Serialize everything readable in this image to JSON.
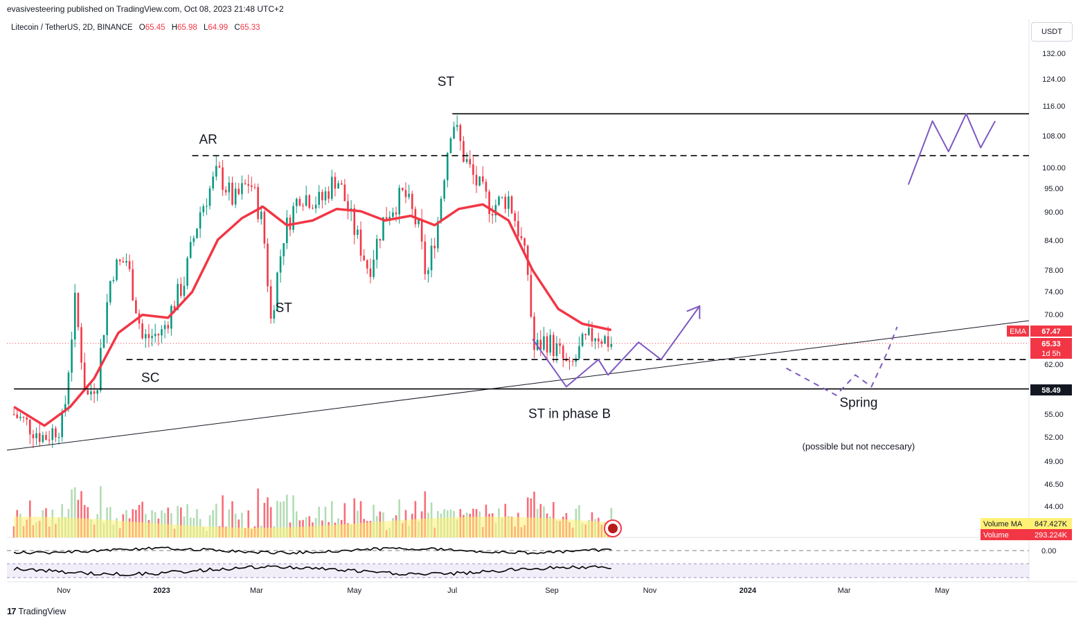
{
  "header": {
    "published_by": "evasivesteering published on TradingView.com, Oct 08, 2023 21:48 UTC+2",
    "symbol": "Litecoin / TetherUS, 2D, BINANCE",
    "ohlc": [
      {
        "label": "O",
        "value": "65.45"
      },
      {
        "label": "H",
        "value": "65.98"
      },
      {
        "label": "L",
        "value": "64.99"
      },
      {
        "label": "C",
        "value": "65.33"
      }
    ],
    "currency": "USDT"
  },
  "footer": {
    "brand": "TradingView"
  },
  "colors": {
    "up": "#089981",
    "down": "#f23645",
    "ema": "#f23645",
    "volume_ma": "#fff176",
    "vol_up": "#a5d6a7",
    "vol_down": "#f7525f",
    "drawing": "#7e57c2",
    "level": "#000000"
  },
  "chart_data": {
    "type": "candlestick",
    "title": "Litecoin / TetherUS, 2D, BINANCE",
    "x_ticks": [
      "Nov",
      "2023",
      "Mar",
      "May",
      "Jul",
      "Sep",
      "Nov",
      "2024",
      "Mar",
      "May"
    ],
    "y_ticks": [
      "132.00",
      "124.00",
      "116.00",
      "108.00",
      "100.00",
      "95.00",
      "90.00",
      "84.00",
      "78.00",
      "74.00",
      "70.00",
      "62.00",
      "55.00",
      "52.00",
      "49.00",
      "46.50",
      "44.00"
    ],
    "y_range": [
      43,
      138
    ],
    "price_labels": [
      {
        "name": "EMA",
        "value": "67.47",
        "color": "#f23645"
      },
      {
        "name": "",
        "value": "65.33",
        "sub": "1d 5h",
        "color": "#f23645"
      },
      {
        "name": "",
        "value": "58.49",
        "color": "#131722"
      }
    ],
    "volume_labels": [
      {
        "name": "Volume MA",
        "value": "847.427K",
        "color": "#fff176"
      },
      {
        "name": "Volume",
        "value": "293.224K",
        "color": "#f23645"
      }
    ],
    "oscillator_label": "0.00",
    "ema_points": [
      [
        "2022-10-01",
        56
      ],
      [
        "2022-10-20",
        53.5
      ],
      [
        "2022-11-05",
        56
      ],
      [
        "2022-11-20",
        60
      ],
      [
        "2022-12-05",
        67
      ],
      [
        "2022-12-20",
        70
      ],
      [
        "2023-01-05",
        69.5
      ],
      [
        "2023-01-20",
        74
      ],
      [
        "2023-02-05",
        84
      ],
      [
        "2023-02-20",
        88.5
      ],
      [
        "2023-03-05",
        91
      ],
      [
        "2023-03-20",
        87
      ],
      [
        "2023-04-05",
        88
      ],
      [
        "2023-04-20",
        90.5
      ],
      [
        "2023-05-05",
        90
      ],
      [
        "2023-05-20",
        88
      ],
      [
        "2023-06-05",
        89
      ],
      [
        "2023-06-20",
        87
      ],
      [
        "2023-07-05",
        90.5
      ],
      [
        "2023-07-20",
        91.5
      ],
      [
        "2023-08-05",
        88
      ],
      [
        "2023-08-20",
        78
      ],
      [
        "2023-09-05",
        71
      ],
      [
        "2023-09-20",
        68.5
      ],
      [
        "2023-10-08",
        67.47
      ]
    ],
    "price_path": [
      [
        "2022-10-01",
        55
      ],
      [
        "2022-10-20",
        52
      ],
      [
        "2022-11-01",
        54
      ],
      [
        "2022-11-08",
        72
      ],
      [
        "2022-11-15",
        57
      ],
      [
        "2022-11-22",
        60
      ],
      [
        "2022-12-01",
        78
      ],
      [
        "2022-12-10",
        80
      ],
      [
        "2022-12-20",
        66
      ],
      [
        "2023-01-01",
        67
      ],
      [
        "2023-01-15",
        76
      ],
      [
        "2023-01-25",
        90
      ],
      [
        "2023-02-05",
        99
      ],
      [
        "2023-02-15",
        92
      ],
      [
        "2023-02-25",
        97
      ],
      [
        "2023-03-05",
        87
      ],
      [
        "2023-03-10",
        69
      ],
      [
        "2023-03-18",
        85
      ],
      [
        "2023-03-28",
        94
      ],
      [
        "2023-04-10",
        92
      ],
      [
        "2023-04-20",
        98
      ],
      [
        "2023-05-01",
        86
      ],
      [
        "2023-05-10",
        78
      ],
      [
        "2023-05-20",
        89
      ],
      [
        "2023-06-01",
        94
      ],
      [
        "2023-06-10",
        86
      ],
      [
        "2023-06-15",
        76
      ],
      [
        "2023-06-22",
        88
      ],
      [
        "2023-07-01",
        113
      ],
      [
        "2023-07-08",
        103
      ],
      [
        "2023-07-15",
        97
      ],
      [
        "2023-07-25",
        91
      ],
      [
        "2023-08-05",
        93
      ],
      [
        "2023-08-12",
        85
      ],
      [
        "2023-08-18",
        76
      ],
      [
        "2023-08-20",
        64
      ],
      [
        "2023-08-28",
        66
      ],
      [
        "2023-09-05",
        64
      ],
      [
        "2023-09-12",
        61
      ],
      [
        "2023-09-20",
        65
      ],
      [
        "2023-09-28",
        67
      ],
      [
        "2023-10-08",
        65.33
      ]
    ],
    "levels": [
      {
        "value": 114,
        "style": "solid",
        "from": "2023-07-01"
      },
      {
        "value": 103,
        "style": "dashed",
        "from": "2023-01-20"
      },
      {
        "value": 62.8,
        "style": "dashed",
        "from": "2022-12-10"
      },
      {
        "value": 58.49,
        "style": "solid",
        "from": "2022-10-01"
      }
    ],
    "annotations": [
      {
        "text": "SC",
        "date": "2022-12-25",
        "price": 59.5
      },
      {
        "text": "AR",
        "date": "2023-01-30",
        "price": 106
      },
      {
        "text": "ST",
        "date": "2023-03-18",
        "price": 70.5
      },
      {
        "text": "ST",
        "date": "2023-06-27",
        "price": 122
      },
      {
        "text": "ST in phase B",
        "date": "2023-09-12",
        "price": 54.5
      },
      {
        "text": "Spring",
        "date": "2024-03-10",
        "price": 56
      },
      {
        "text": "(possible but not neccesary)",
        "date": "2024-03-10",
        "price": 50.5
      }
    ]
  }
}
